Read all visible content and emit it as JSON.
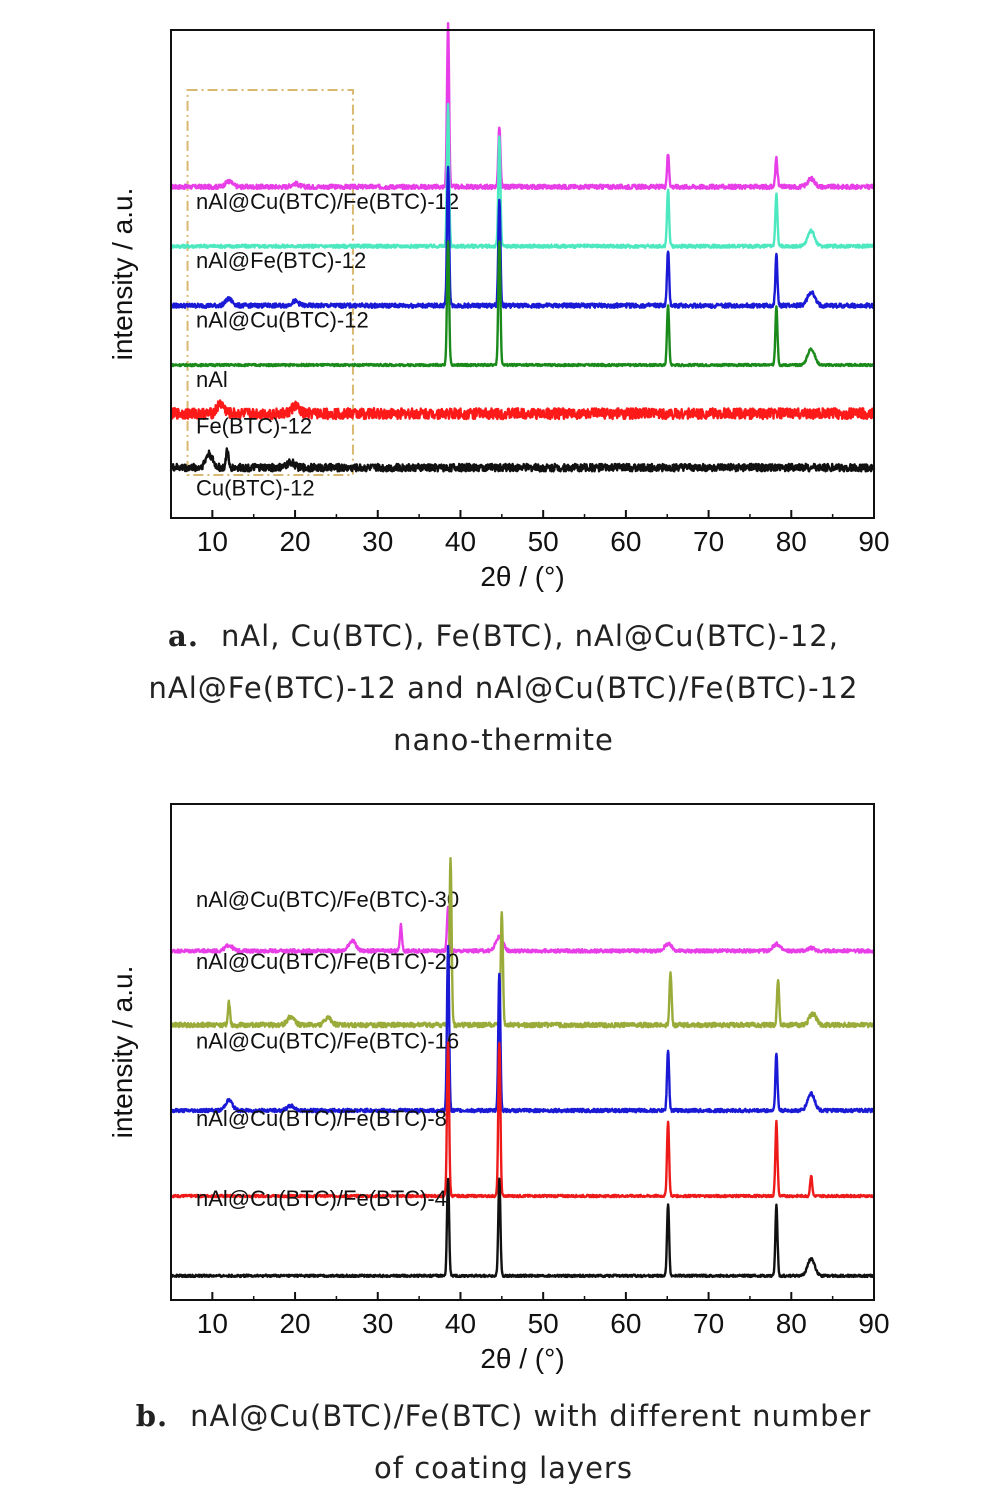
{
  "chart_data": [
    {
      "type": "line",
      "xlabel": "2θ / (°)",
      "ylabel": "intensity / a.u.",
      "xlim": [
        5,
        90
      ],
      "xticks": [
        10,
        20,
        30,
        40,
        50,
        60,
        70,
        80,
        90
      ],
      "highlight_box_x": [
        7,
        27
      ],
      "caption_letter": "a.",
      "caption": [
        "nAl, Cu(BTC), Fe(BTC), nAl@Cu(BTC)-12,",
        "nAl@Fe(BTC)-12 and nAl@Cu(BTC)/Fe(BTC)-12",
        "nano-thermite"
      ],
      "series": [
        {
          "name": "nAl@Cu(BTC)/Fe(BTC)-12",
          "color": "#e83ee8",
          "baseline": 5.8,
          "noise": 0.04,
          "peaks": [
            [
              12,
              0.1
            ],
            [
              20,
              0.06
            ],
            [
              38.5,
              3.0
            ],
            [
              44.7,
              1.1
            ],
            [
              65.1,
              0.6
            ],
            [
              78.2,
              0.55
            ],
            [
              82.4,
              0.15
            ]
          ]
        },
        {
          "name": "nAl@Fe(BTC)-12",
          "color": "#4de8c0",
          "baseline": 4.7,
          "noise": 0.03,
          "peaks": [
            [
              38.5,
              2.6
            ],
            [
              44.7,
              2.0
            ],
            [
              65.1,
              1.05
            ],
            [
              78.2,
              1.0
            ],
            [
              82.4,
              0.28
            ]
          ]
        },
        {
          "name": "nAl@Cu(BTC)-12",
          "color": "#1a1ad6",
          "baseline": 3.6,
          "noise": 0.04,
          "peaks": [
            [
              12,
              0.12
            ],
            [
              20,
              0.08
            ],
            [
              38.5,
              2.6
            ],
            [
              44.7,
              1.95
            ],
            [
              65.1,
              1.0
            ],
            [
              78.2,
              0.95
            ],
            [
              82.4,
              0.25
            ]
          ]
        },
        {
          "name": "nAl",
          "color": "#1a8a1a",
          "baseline": 2.5,
          "noise": 0.02,
          "peaks": [
            [
              38.5,
              2.3
            ],
            [
              44.7,
              2.3
            ],
            [
              65.1,
              1.1
            ],
            [
              78.2,
              1.1
            ],
            [
              82.4,
              0.3
            ]
          ]
        },
        {
          "name": "Fe(BTC)-12",
          "color": "#ff1a1a",
          "baseline": 1.6,
          "noise": 0.1,
          "peaks": [
            [
              11,
              0.18
            ],
            [
              20,
              0.14
            ]
          ]
        },
        {
          "name": "Cu(BTC)-12",
          "color": "#111111",
          "baseline": 0.6,
          "noise": 0.07,
          "peaks": [
            [
              9.6,
              0.25
            ],
            [
              11.8,
              0.35
            ],
            [
              19.5,
              0.1
            ]
          ]
        }
      ]
    },
    {
      "type": "line",
      "xlabel": "2θ / (°)",
      "ylabel": "intensity / a.u.",
      "xlim": [
        5,
        90
      ],
      "xticks": [
        10,
        20,
        30,
        40,
        50,
        60,
        70,
        80,
        90
      ],
      "caption_letter": "b.",
      "caption": [
        "nAl@Cu(BTC)/Fe(BTC) with different number",
        "of coating layers"
      ],
      "series": [
        {
          "name": "nAl@Cu(BTC)/Fe(BTC)-30",
          "color": "#e83ee8",
          "baseline": 6.3,
          "noise": 0.03,
          "peaks": [
            [
              12,
              0.1
            ],
            [
              26.9,
              0.18
            ],
            [
              32.8,
              0.45
            ],
            [
              38.5,
              0.8
            ],
            [
              44.7,
              0.25
            ],
            [
              65.1,
              0.12
            ],
            [
              78.2,
              0.12
            ],
            [
              82.4,
              0.05
            ]
          ]
        },
        {
          "name": "nAl@Cu(BTC)/Fe(BTC)-20",
          "color": "#9aab3a",
          "baseline": 5.0,
          "noise": 0.04,
          "peaks": [
            [
              12,
              0.4
            ],
            [
              19.5,
              0.15
            ],
            [
              24,
              0.12
            ],
            [
              38.8,
              2.9
            ],
            [
              45,
              2.0
            ],
            [
              65.4,
              0.9
            ],
            [
              78.4,
              0.8
            ],
            [
              82.6,
              0.2
            ]
          ]
        },
        {
          "name": "nAl@Cu(BTC)/Fe(BTC)-16",
          "color": "#1a1ad6",
          "baseline": 3.5,
          "noise": 0.03,
          "peaks": [
            [
              12,
              0.18
            ],
            [
              19.5,
              0.08
            ],
            [
              38.5,
              2.9
            ],
            [
              44.7,
              2.4
            ],
            [
              65.1,
              1.05
            ],
            [
              78.2,
              1.0
            ],
            [
              82.4,
              0.3
            ]
          ]
        },
        {
          "name": "nAl@Cu(BTC)/Fe(BTC)-8",
          "color": "#ee1a1a",
          "baseline": 2.0,
          "noise": 0.02,
          "peaks": [
            [
              38.5,
              2.7
            ],
            [
              44.7,
              2.7
            ],
            [
              65.1,
              1.3
            ],
            [
              78.2,
              1.3
            ],
            [
              82.4,
              0.35
            ]
          ]
        },
        {
          "name": "nAl@Cu(BTC)/Fe(BTC)-4",
          "color": "#111111",
          "baseline": 0.6,
          "noise": 0.02,
          "peaks": [
            [
              38.5,
              1.7
            ],
            [
              44.7,
              1.7
            ],
            [
              65.1,
              1.25
            ],
            [
              78.2,
              1.25
            ],
            [
              82.4,
              0.3
            ]
          ]
        }
      ]
    }
  ]
}
